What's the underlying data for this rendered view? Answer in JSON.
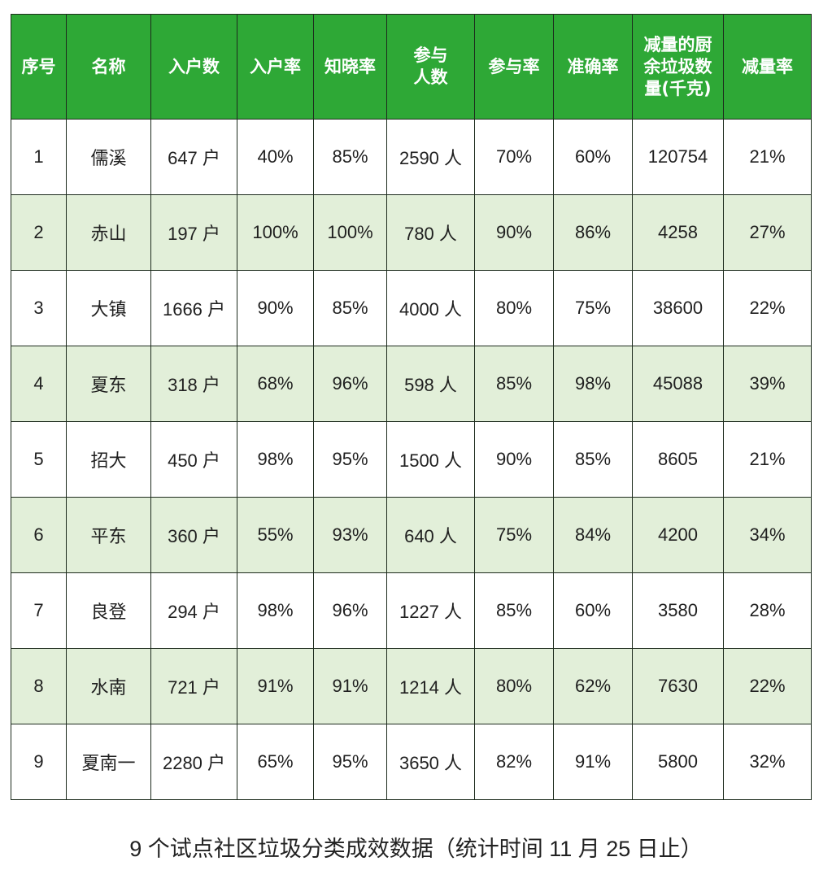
{
  "colors": {
    "header_bg": "#2ea836",
    "header_text": "#ffffff",
    "alt_row_bg": "#e2efd9",
    "row_bg": "#ffffff"
  },
  "chart_data": {
    "type": "table",
    "title": "9 个试点社区垃圾分类成效数据（统计时间 11 月 25 日止）",
    "columns": [
      "序号",
      "名称",
      "入户数",
      "入户率",
      "知晓率",
      "参与人数",
      "参与率",
      "准确率",
      "减量的厨余垃圾数量(千克)",
      "减量率"
    ],
    "header_lines": [
      [
        "序号"
      ],
      [
        "名称"
      ],
      [
        "入户数"
      ],
      [
        "入户率"
      ],
      [
        "知晓率"
      ],
      [
        "参与",
        "人数"
      ],
      [
        "参与率"
      ],
      [
        "准确率"
      ],
      [
        "减量的厨",
        "余垃圾数",
        "量(千克)"
      ],
      [
        "减量率"
      ]
    ],
    "rows": [
      [
        "1",
        "儒溪",
        "647 户",
        "40%",
        "85%",
        "2590 人",
        "70%",
        "60%",
        "120754",
        "21%"
      ],
      [
        "2",
        "赤山",
        "197 户",
        "100%",
        "100%",
        "780 人",
        "90%",
        "86%",
        "4258",
        "27%"
      ],
      [
        "3",
        "大镇",
        "1666 户",
        "90%",
        "85%",
        "4000 人",
        "80%",
        "75%",
        "38600",
        "22%"
      ],
      [
        "4",
        "夏东",
        "318 户",
        "68%",
        "96%",
        "598 人",
        "85%",
        "98%",
        "45088",
        "39%"
      ],
      [
        "5",
        "招大",
        "450 户",
        "98%",
        "95%",
        "1500 人",
        "90%",
        "85%",
        "8605",
        "21%"
      ],
      [
        "6",
        "平东",
        "360 户",
        "55%",
        "93%",
        "640 人",
        "75%",
        "84%",
        "4200",
        "34%"
      ],
      [
        "7",
        "良登",
        "294 户",
        "98%",
        "96%",
        "1227 人",
        "85%",
        "60%",
        "3580",
        "28%"
      ],
      [
        "8",
        "水南",
        "721 户",
        "91%",
        "91%",
        "1214 人",
        "80%",
        "62%",
        "7630",
        "22%"
      ],
      [
        "9",
        "夏南一",
        "2280 户",
        "65%",
        "95%",
        "3650 人",
        "82%",
        "91%",
        "5800",
        "32%"
      ]
    ]
  }
}
